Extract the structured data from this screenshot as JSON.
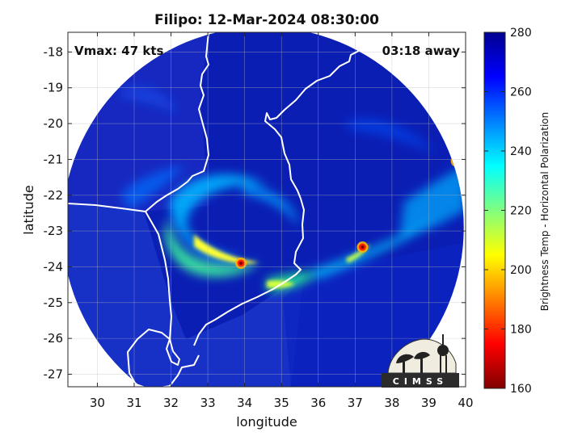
{
  "title": "Filipo: 12-Mar-2024 08:30:00",
  "vmax_label": "Vmax: 47 kts",
  "time_label": "03:18 away",
  "x_axis": {
    "label": "longitude",
    "range": [
      29.2,
      40.0
    ],
    "ticks": [
      30,
      31,
      32,
      33,
      34,
      35,
      36,
      37,
      38,
      39,
      40
    ],
    "tick_labels": [
      "30",
      "31",
      "32",
      "33",
      "34",
      "35",
      "36",
      "37",
      "38",
      "39",
      "40"
    ]
  },
  "y_axis": {
    "label": "latitude",
    "range": [
      -27.35,
      -17.45
    ],
    "ticks": [
      -18,
      -19,
      -20,
      -21,
      -22,
      -23,
      -24,
      -25,
      -26,
      -27
    ],
    "tick_labels": [
      "-18",
      "-19",
      "-20",
      "-21",
      "-22",
      "-23",
      "-24",
      "-25",
      "-26",
      "-27"
    ]
  },
  "colorbar": {
    "label": "Brightness Temp - Horizontal Polarization",
    "range": [
      160,
      280
    ],
    "ticks": [
      280,
      260,
      240,
      220,
      200,
      180,
      160
    ],
    "tick_labels": [
      "280",
      "260",
      "240",
      "220",
      "200",
      "180",
      "160"
    ],
    "colormap": "jet"
  },
  "grid": true,
  "logo_text": "CIMSS",
  "colors": {
    "ocean_bg": "#0a1eb4",
    "land_bg": "#1830c8",
    "coastline": "#ffffff",
    "grid": "#bbbbbb"
  },
  "map_features": {
    "swath_center": [
      34.5,
      -22.9
    ],
    "swath_radius_deg": 5.45,
    "cyclone_center": [
      34.4,
      -22.6
    ],
    "hot_spots": [
      {
        "lon": 33.9,
        "lat": -23.9,
        "tb": 170
      },
      {
        "lon": 37.2,
        "lat": -23.45,
        "tb": 178
      },
      {
        "lon": 39.75,
        "lat": -21.05,
        "tb": 175
      }
    ]
  }
}
